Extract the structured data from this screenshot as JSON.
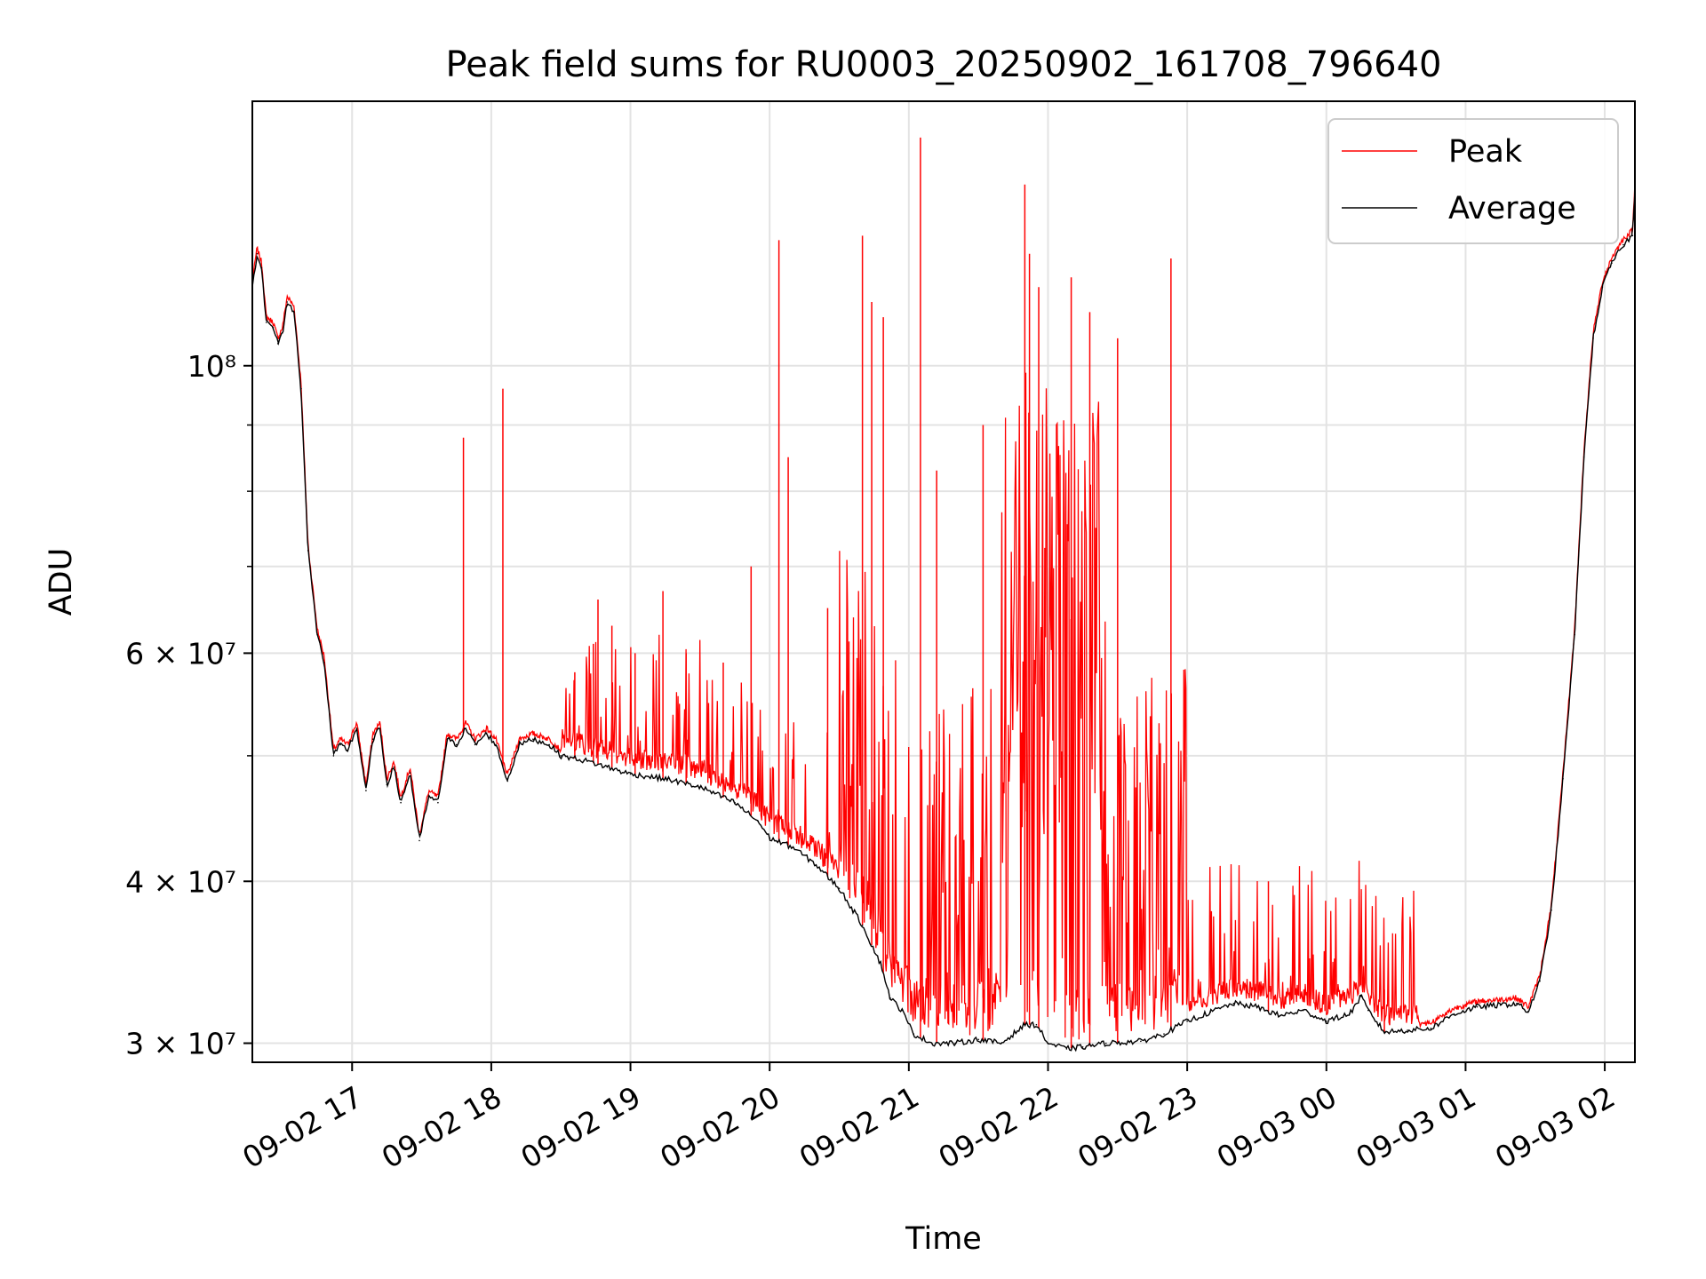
{
  "chart_data": {
    "type": "line",
    "title": "Peak field sums for RU0003_20250902_161708_796640",
    "xlabel": "Time",
    "ylabel": "ADU",
    "yscale": "log",
    "grid": true,
    "legend_position": "upper-right",
    "xlim": [
      "2025-09-02 16:17",
      "2025-09-03 02:13"
    ],
    "ylim": [
      29000000,
      160000000
    ],
    "x_ticks": [
      {
        "t": "2025-09-02 17:00",
        "label": "09-02 17"
      },
      {
        "t": "2025-09-02 18:00",
        "label": "09-02 18"
      },
      {
        "t": "2025-09-02 19:00",
        "label": "09-02 19"
      },
      {
        "t": "2025-09-02 20:00",
        "label": "09-02 20"
      },
      {
        "t": "2025-09-02 21:00",
        "label": "09-02 21"
      },
      {
        "t": "2025-09-02 22:00",
        "label": "09-02 22"
      },
      {
        "t": "2025-09-02 23:00",
        "label": "09-02 23"
      },
      {
        "t": "2025-09-03 00:00",
        "label": "09-03 00"
      },
      {
        "t": "2025-09-03 01:00",
        "label": "09-03 01"
      },
      {
        "t": "2025-09-03 02:00",
        "label": "09-03 02"
      }
    ],
    "y_ticks": [
      {
        "v": 30000000,
        "label": "3 × 10⁷"
      },
      {
        "v": 40000000,
        "label": "4 × 10⁷"
      },
      {
        "v": 60000000,
        "label": "6 × 10⁷"
      },
      {
        "v": 100000000,
        "label": "10⁸"
      }
    ],
    "y_minor_ticks": [
      50000000,
      70000000,
      80000000,
      90000000
    ],
    "series": [
      {
        "name": "Average",
        "color": "#000000",
        "points": [
          [
            "2025-09-02 16:17",
            115000000
          ],
          [
            "2025-09-02 16:19",
            122000000
          ],
          [
            "2025-09-02 16:21",
            119000000
          ],
          [
            "2025-09-02 16:23",
            108000000
          ],
          [
            "2025-09-02 16:26",
            107000000
          ],
          [
            "2025-09-02 16:28",
            104000000
          ],
          [
            "2025-09-02 16:30",
            106000000
          ],
          [
            "2025-09-02 16:32",
            112000000
          ],
          [
            "2025-09-02 16:35",
            110000000
          ],
          [
            "2025-09-02 16:38",
            96000000
          ],
          [
            "2025-09-02 16:41",
            72000000
          ],
          [
            "2025-09-02 16:45",
            62000000
          ],
          [
            "2025-09-02 16:48",
            59000000
          ],
          [
            "2025-09-02 16:51",
            52000000
          ],
          [
            "2025-09-02 16:52",
            50000000
          ],
          [
            "2025-09-02 16:55",
            51000000
          ],
          [
            "2025-09-02 16:58",
            50500000
          ],
          [
            "2025-09-02 17:02",
            52500000
          ],
          [
            "2025-09-02 17:06",
            47000000
          ],
          [
            "2025-09-02 17:09",
            51500000
          ],
          [
            "2025-09-02 17:12",
            52500000
          ],
          [
            "2025-09-02 17:15",
            47500000
          ],
          [
            "2025-09-02 17:18",
            49000000
          ],
          [
            "2025-09-02 17:21",
            46000000
          ],
          [
            "2025-09-02 17:25",
            48500000
          ],
          [
            "2025-09-02 17:29",
            43000000
          ],
          [
            "2025-09-02 17:33",
            46500000
          ],
          [
            "2025-09-02 17:37",
            46000000
          ],
          [
            "2025-09-02 17:41",
            51500000
          ],
          [
            "2025-09-02 17:45",
            51000000
          ],
          [
            "2025-09-02 17:49",
            52500000
          ],
          [
            "2025-09-02 17:53",
            51000000
          ],
          [
            "2025-09-02 17:58",
            52000000
          ],
          [
            "2025-09-02 18:02",
            51000000
          ],
          [
            "2025-09-02 18:07",
            47800000
          ],
          [
            "2025-09-02 18:12",
            51000000
          ],
          [
            "2025-09-02 18:18",
            51500000
          ],
          [
            "2025-09-02 18:25",
            51000000
          ],
          [
            "2025-09-02 18:30",
            50000000
          ],
          [
            "2025-09-02 18:40",
            49600000
          ],
          [
            "2025-09-02 18:50",
            49000000
          ],
          [
            "2025-09-02 19:00",
            48400000
          ],
          [
            "2025-09-02 19:15",
            48000000
          ],
          [
            "2025-09-02 19:30",
            47300000
          ],
          [
            "2025-09-02 19:45",
            46000000
          ],
          [
            "2025-09-02 19:55",
            44500000
          ],
          [
            "2025-09-02 20:00",
            43200000
          ],
          [
            "2025-09-02 20:10",
            42500000
          ],
          [
            "2025-09-02 20:20",
            41200000
          ],
          [
            "2025-09-02 20:30",
            39500000
          ],
          [
            "2025-09-02 20:40",
            37000000
          ],
          [
            "2025-09-02 20:48",
            34500000
          ],
          [
            "2025-09-02 20:52",
            32500000
          ],
          [
            "2025-09-02 20:57",
            31800000
          ],
          [
            "2025-09-02 21:02",
            30500000
          ],
          [
            "2025-09-02 21:10",
            30000000
          ],
          [
            "2025-09-02 21:20",
            30000000
          ],
          [
            "2025-09-02 21:30",
            30200000
          ],
          [
            "2025-09-02 21:40",
            30000000
          ],
          [
            "2025-09-02 21:50",
            31000000
          ],
          [
            "2025-09-02 21:55",
            31000000
          ],
          [
            "2025-09-02 22:00",
            30000000
          ],
          [
            "2025-09-02 22:08",
            29700000
          ],
          [
            "2025-09-02 22:15",
            29800000
          ],
          [
            "2025-09-02 22:25",
            30000000
          ],
          [
            "2025-09-02 22:40",
            30100000
          ],
          [
            "2025-09-02 22:50",
            30500000
          ],
          [
            "2025-09-02 23:00",
            31200000
          ],
          [
            "2025-09-02 23:10",
            31700000
          ],
          [
            "2025-09-02 23:20",
            32200000
          ],
          [
            "2025-09-02 23:30",
            32000000
          ],
          [
            "2025-09-02 23:40",
            31500000
          ],
          [
            "2025-09-02 23:50",
            31800000
          ],
          [
            "2025-09-03 00:00",
            31200000
          ],
          [
            "2025-09-03 00:10",
            31600000
          ],
          [
            "2025-09-03 00:15",
            32600000
          ],
          [
            "2025-09-03 00:18",
            31800000
          ],
          [
            "2025-09-03 00:25",
            30600000
          ],
          [
            "2025-09-03 00:35",
            30700000
          ],
          [
            "2025-09-03 00:45",
            30800000
          ],
          [
            "2025-09-03 00:55",
            31600000
          ],
          [
            "2025-09-03 01:05",
            32000000
          ],
          [
            "2025-09-03 01:15",
            32100000
          ],
          [
            "2025-09-03 01:22",
            32200000
          ],
          [
            "2025-09-03 01:27",
            31700000
          ],
          [
            "2025-09-03 01:32",
            33500000
          ],
          [
            "2025-09-03 01:37",
            38000000
          ],
          [
            "2025-09-03 01:42",
            48000000
          ],
          [
            "2025-09-03 01:47",
            62000000
          ],
          [
            "2025-09-03 01:51",
            85000000
          ],
          [
            "2025-09-03 01:55",
            105000000
          ],
          [
            "2025-09-03 01:59",
            115000000
          ],
          [
            "2025-09-03 02:03",
            120000000
          ],
          [
            "2025-09-03 02:08",
            124000000
          ],
          [
            "2025-09-03 02:12",
            126000000
          ],
          [
            "2025-09-03 02:13",
            137000000
          ]
        ]
      },
      {
        "name": "Peak",
        "color": "#ff0000",
        "spikes": [
          [
            "2025-09-02 17:48",
            88000000
          ],
          [
            "2025-09-02 18:05",
            96000000
          ],
          [
            "2025-09-02 18:36",
            58000000
          ],
          [
            "2025-09-02 18:44",
            61000000
          ],
          [
            "2025-09-02 18:46",
            66000000
          ],
          [
            "2025-09-02 18:52",
            63000000
          ],
          [
            "2025-09-02 19:02",
            60000000
          ],
          [
            "2025-09-02 19:14",
            67000000
          ],
          [
            "2025-09-02 19:24",
            60000000
          ],
          [
            "2025-09-02 19:40",
            59000000
          ],
          [
            "2025-09-02 19:52",
            70000000
          ],
          [
            "2025-09-02 20:04",
            125000000
          ],
          [
            "2025-09-02 20:08",
            85000000
          ],
          [
            "2025-09-02 20:25",
            65000000
          ],
          [
            "2025-09-02 20:40",
            126000000
          ],
          [
            "2025-09-02 20:44",
            112000000
          ],
          [
            "2025-09-02 20:49",
            109000000
          ],
          [
            "2025-09-02 21:05",
            150000000
          ],
          [
            "2025-09-02 21:12",
            83000000
          ],
          [
            "2025-09-02 21:32",
            90000000
          ],
          [
            "2025-09-02 21:50",
            138000000
          ],
          [
            "2025-09-02 21:52",
            122000000
          ],
          [
            "2025-09-02 21:56",
            115000000
          ],
          [
            "2025-09-02 22:10",
            117000000
          ],
          [
            "2025-09-02 22:18",
            110000000
          ],
          [
            "2025-09-02 22:30",
            105000000
          ],
          [
            "2025-09-02 22:53",
            121000000
          ],
          [
            "2025-09-02 23:35",
            40000000
          ],
          [
            "2025-09-03 00:25",
            33000000
          ],
          [
            "2025-09-03 02:13",
            138000000
          ]
        ]
      }
    ]
  }
}
